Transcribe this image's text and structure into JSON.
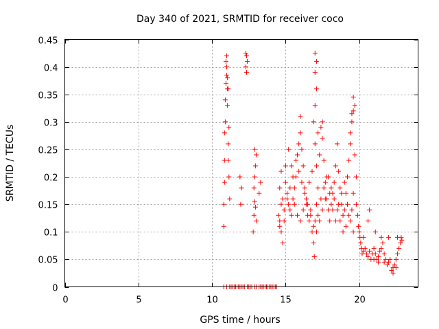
{
  "chart_data": {
    "type": "scatter",
    "title": "Day 340 of 2021, SRMTID for receiver coco",
    "xlabel": "GPS time / hours",
    "ylabel": "SRMTID / TECUs",
    "xlim": [
      0,
      24
    ],
    "ylim": [
      0,
      0.45
    ],
    "xticks": [
      0,
      5,
      10,
      15,
      20
    ],
    "xtick_labels": [
      "0",
      "5",
      "10",
      "15",
      "20"
    ],
    "yticks": [
      0,
      0.05,
      0.1,
      0.15,
      0.2,
      0.25,
      0.3,
      0.35,
      0.4,
      0.45
    ],
    "ytick_labels": [
      "0",
      "0.05",
      "0.1",
      "0.15",
      "0.2",
      "0.25",
      "0.3",
      "0.35",
      "0.4",
      "0.45"
    ],
    "grid": true,
    "marker": "+",
    "color": "#ff0000",
    "series": [
      {
        "name": "SRMTID",
        "points": [
          [
            10.8,
            0.11
          ],
          [
            10.8,
            0.15
          ],
          [
            10.85,
            0.19
          ],
          [
            10.85,
            0.23
          ],
          [
            10.85,
            0.28
          ],
          [
            10.9,
            0.3
          ],
          [
            10.9,
            0.34
          ],
          [
            10.95,
            0.37
          ],
          [
            11.0,
            0.4
          ],
          [
            10.95,
            0.41
          ],
          [
            11.0,
            0.42
          ],
          [
            11.05,
            0.38
          ],
          [
            11.1,
            0.36
          ],
          [
            11.05,
            0.33
          ],
          [
            11.1,
            0.23
          ],
          [
            11.1,
            0.26
          ],
          [
            11.15,
            0.29
          ],
          [
            11.15,
            0.2
          ],
          [
            11.2,
            0.16
          ],
          [
            11.0,
            0.385
          ],
          [
            11.05,
            0.36
          ],
          [
            11.9,
            0.2
          ],
          [
            12.0,
            0.18
          ],
          [
            11.95,
            0.15
          ],
          [
            12.3,
            0.425
          ],
          [
            12.3,
            0.4
          ],
          [
            12.35,
            0.39
          ],
          [
            12.4,
            0.41
          ],
          [
            12.35,
            0.42
          ],
          [
            12.8,
            0.1
          ],
          [
            12.85,
            0.13
          ],
          [
            12.9,
            0.155
          ],
          [
            12.85,
            0.18
          ],
          [
            12.95,
            0.22
          ],
          [
            12.9,
            0.25
          ],
          [
            13.0,
            0.24
          ],
          [
            12.95,
            0.145
          ],
          [
            13.0,
            0.12
          ],
          [
            13.3,
            0.19
          ],
          [
            13.2,
            0.17
          ],
          [
            12.9,
            0.2
          ],
          [
            14.5,
            0.13
          ],
          [
            14.6,
            0.12
          ],
          [
            14.7,
            0.1
          ],
          [
            14.8,
            0.08
          ],
          [
            14.9,
            0.14
          ],
          [
            14.8,
            0.16
          ],
          [
            14.6,
            0.18
          ],
          [
            14.7,
            0.21
          ],
          [
            15.0,
            0.22
          ],
          [
            15.0,
            0.19
          ],
          [
            15.1,
            0.17
          ],
          [
            15.2,
            0.15
          ],
          [
            15.3,
            0.14
          ],
          [
            15.4,
            0.13
          ],
          [
            15.5,
            0.16
          ],
          [
            15.6,
            0.18
          ],
          [
            15.7,
            0.2
          ],
          [
            15.8,
            0.24
          ],
          [
            15.9,
            0.26
          ],
          [
            16.0,
            0.28
          ],
          [
            16.0,
            0.31
          ],
          [
            16.1,
            0.25
          ],
          [
            16.2,
            0.22
          ],
          [
            16.3,
            0.18
          ],
          [
            16.4,
            0.15
          ],
          [
            16.5,
            0.13
          ],
          [
            16.6,
            0.12
          ],
          [
            16.7,
            0.14
          ],
          [
            16.8,
            0.1
          ],
          [
            16.9,
            0.08
          ],
          [
            16.95,
            0.055
          ],
          [
            17.0,
            0.12
          ],
          [
            17.1,
            0.15
          ],
          [
            17.2,
            0.18
          ],
          [
            17.1,
            0.22
          ],
          [
            17.0,
            0.26
          ],
          [
            16.9,
            0.3
          ],
          [
            17.0,
            0.33
          ],
          [
            17.1,
            0.36
          ],
          [
            17.0,
            0.39
          ],
          [
            17.1,
            0.41
          ],
          [
            17.0,
            0.425
          ],
          [
            17.2,
            0.28
          ],
          [
            17.3,
            0.24
          ],
          [
            17.4,
            0.29
          ],
          [
            17.5,
            0.27
          ],
          [
            17.5,
            0.3
          ],
          [
            17.6,
            0.23
          ],
          [
            17.7,
            0.19
          ],
          [
            17.8,
            0.16
          ],
          [
            17.9,
            0.14
          ],
          [
            18.0,
            0.12
          ],
          [
            18.1,
            0.15
          ],
          [
            18.2,
            0.17
          ],
          [
            18.3,
            0.19
          ],
          [
            18.4,
            0.22
          ],
          [
            18.5,
            0.26
          ],
          [
            18.6,
            0.21
          ],
          [
            18.7,
            0.18
          ],
          [
            18.8,
            0.15
          ],
          [
            18.9,
            0.13
          ],
          [
            19.0,
            0.14
          ],
          [
            19.1,
            0.17
          ],
          [
            19.2,
            0.2
          ],
          [
            19.3,
            0.23
          ],
          [
            19.4,
            0.26
          ],
          [
            19.5,
            0.3
          ],
          [
            19.6,
            0.32
          ],
          [
            19.6,
            0.345
          ],
          [
            19.7,
            0.33
          ],
          [
            19.5,
            0.315
          ],
          [
            19.4,
            0.28
          ],
          [
            19.7,
            0.24
          ],
          [
            19.8,
            0.2
          ],
          [
            19.6,
            0.17
          ],
          [
            19.5,
            0.14
          ],
          [
            19.3,
            0.13
          ],
          [
            19.1,
            0.11
          ],
          [
            18.9,
            0.1
          ],
          [
            18.7,
            0.12
          ],
          [
            18.5,
            0.14
          ],
          [
            18.3,
            0.16
          ],
          [
            18.1,
            0.18
          ],
          [
            17.9,
            0.2
          ],
          [
            17.7,
            0.16
          ],
          [
            17.5,
            0.14
          ],
          [
            17.3,
            0.12
          ],
          [
            17.1,
            0.1
          ],
          [
            16.9,
            0.11
          ],
          [
            16.7,
            0.13
          ],
          [
            16.5,
            0.15
          ],
          [
            16.3,
            0.17
          ],
          [
            16.1,
            0.19
          ],
          [
            15.9,
            0.21
          ],
          [
            15.7,
            0.23
          ],
          [
            15.5,
            0.2
          ],
          [
            15.3,
            0.18
          ],
          [
            15.1,
            0.16
          ],
          [
            14.9,
            0.12
          ],
          [
            14.7,
            0.15
          ],
          [
            14.6,
            0.11
          ],
          [
            15.2,
            0.25
          ],
          [
            15.4,
            0.22
          ],
          [
            15.6,
            0.15
          ],
          [
            15.8,
            0.13
          ],
          [
            16.0,
            0.12
          ],
          [
            16.2,
            0.14
          ],
          [
            16.4,
            0.16
          ],
          [
            16.6,
            0.19
          ],
          [
            16.8,
            0.21
          ],
          [
            17.2,
            0.13
          ],
          [
            17.4,
            0.16
          ],
          [
            17.6,
            0.18
          ],
          [
            17.8,
            0.2
          ],
          [
            18.0,
            0.17
          ],
          [
            18.2,
            0.14
          ],
          [
            18.4,
            0.12
          ],
          [
            18.6,
            0.15
          ],
          [
            18.8,
            0.17
          ],
          [
            19.0,
            0.19
          ],
          [
            19.2,
            0.15
          ],
          [
            19.4,
            0.12
          ],
          [
            19.6,
            0.1
          ],
          [
            19.8,
            0.15
          ],
          [
            19.9,
            0.13
          ],
          [
            19.95,
            0.11
          ],
          [
            20.0,
            0.1
          ],
          [
            20.05,
            0.09
          ],
          [
            20.1,
            0.08
          ],
          [
            20.15,
            0.07
          ],
          [
            20.2,
            0.06
          ],
          [
            20.3,
            0.065
          ],
          [
            20.4,
            0.07
          ],
          [
            20.5,
            0.06
          ],
          [
            20.6,
            0.055
          ],
          [
            20.7,
            0.065
          ],
          [
            20.8,
            0.05
          ],
          [
            20.9,
            0.06
          ],
          [
            21.0,
            0.07
          ],
          [
            21.1,
            0.06
          ],
          [
            21.2,
            0.05
          ],
          [
            21.3,
            0.055
          ],
          [
            21.4,
            0.065
          ],
          [
            21.5,
            0.07
          ],
          [
            21.6,
            0.08
          ],
          [
            21.7,
            0.06
          ],
          [
            21.8,
            0.05
          ],
          [
            21.9,
            0.04
          ],
          [
            22.0,
            0.045
          ],
          [
            22.1,
            0.05
          ],
          [
            22.2,
            0.03
          ],
          [
            22.3,
            0.035
          ],
          [
            22.4,
            0.04
          ],
          [
            22.5,
            0.05
          ],
          [
            22.6,
            0.06
          ],
          [
            22.7,
            0.07
          ],
          [
            22.8,
            0.08
          ],
          [
            22.85,
            0.09
          ],
          [
            22.9,
            0.085
          ],
          [
            20.6,
            0.12
          ],
          [
            20.7,
            0.14
          ],
          [
            21.1,
            0.1
          ],
          [
            21.5,
            0.09
          ],
          [
            22.0,
            0.09
          ],
          [
            22.6,
            0.09
          ],
          [
            20.3,
            0.09
          ],
          [
            21.0,
            0.05
          ],
          [
            21.3,
            0.045
          ],
          [
            21.7,
            0.045
          ],
          [
            22.3,
            0.025
          ],
          [
            22.5,
            0.035
          ],
          [
            10.8,
            0
          ],
          [
            11.0,
            0
          ],
          [
            11.2,
            0
          ],
          [
            11.3,
            0
          ],
          [
            11.4,
            0
          ],
          [
            11.5,
            0
          ],
          [
            11.6,
            0
          ],
          [
            11.7,
            0
          ],
          [
            11.8,
            0
          ],
          [
            11.9,
            0
          ],
          [
            12.0,
            0
          ],
          [
            12.1,
            0
          ],
          [
            12.2,
            0
          ],
          [
            12.4,
            0
          ],
          [
            12.5,
            0
          ],
          [
            12.6,
            0
          ],
          [
            12.7,
            0
          ],
          [
            12.9,
            0
          ],
          [
            13.0,
            0
          ],
          [
            13.2,
            0
          ],
          [
            13.3,
            0
          ],
          [
            13.4,
            0
          ],
          [
            13.5,
            0
          ],
          [
            13.6,
            0
          ],
          [
            13.7,
            0
          ],
          [
            13.8,
            0
          ],
          [
            13.9,
            0
          ],
          [
            14.0,
            0
          ],
          [
            14.1,
            0
          ],
          [
            14.2,
            0
          ],
          [
            14.3,
            0
          ],
          [
            14.4,
            0
          ]
        ]
      }
    ]
  }
}
